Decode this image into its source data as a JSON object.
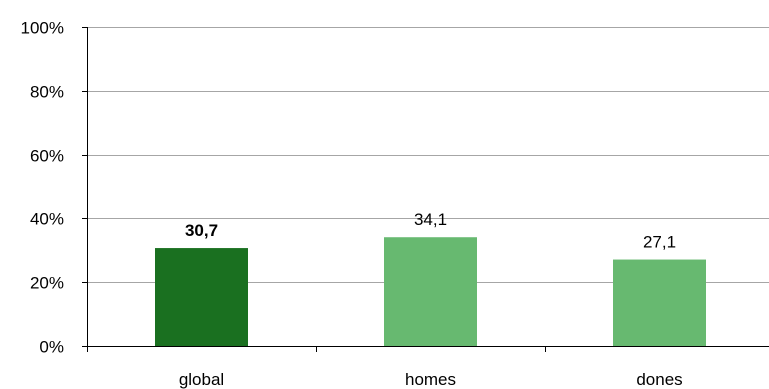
{
  "chart_data": {
    "type": "bar",
    "categories": [
      "global",
      "homes",
      "dones"
    ],
    "values": [
      30.7,
      34.1,
      27.1
    ],
    "value_labels": [
      "30,7",
      "34,1",
      "27,1"
    ],
    "highlighted_category": "global",
    "ylim": [
      0,
      100
    ],
    "yticks": [
      0,
      20,
      40,
      60,
      80,
      100
    ],
    "ytick_labels": [
      "0%",
      "20%",
      "40%",
      "60%",
      "80%",
      "100%"
    ],
    "grid": true,
    "legend": "none",
    "colors": {
      "highlight": "#1a7020",
      "default": "#67b970",
      "gridline": "#a6a6a6",
      "axis": "#000000"
    }
  }
}
